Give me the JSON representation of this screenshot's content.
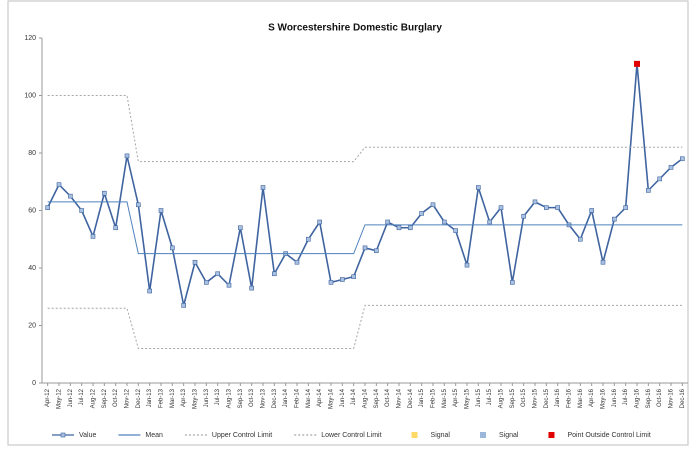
{
  "chart_data": {
    "type": "line",
    "title": "S Worcestershire Domestic Burglary",
    "categories": [
      "Apr-12",
      "May-12",
      "Jun-12",
      "Jul-12",
      "Aug-12",
      "Sep-12",
      "Oct-12",
      "Nov-12",
      "Dec-12",
      "Jan-13",
      "Feb-13",
      "Mar-13",
      "Apr-13",
      "May-13",
      "Jun-13",
      "Jul-13",
      "Aug-13",
      "Sep-13",
      "Oct-13",
      "Nov-13",
      "Dec-13",
      "Jan-14",
      "Feb-14",
      "Mar-14",
      "Apr-14",
      "May-14",
      "Jun-14",
      "Jul-14",
      "Aug-14",
      "Sep-14",
      "Oct-14",
      "Nov-14",
      "Dec-14",
      "Jan-15",
      "Feb-15",
      "Mar-15",
      "Apr-15",
      "May-15",
      "Jun-15",
      "Jul-15",
      "Aug-15",
      "Sep-15",
      "Oct-15",
      "Nov-15",
      "Dec-15",
      "Jan-16",
      "Feb-16",
      "Mar-16",
      "Apr-16",
      "May-16",
      "Jun-16",
      "Jul-16",
      "Aug-16",
      "Sep-16",
      "Oct-16",
      "Nov-16",
      "Dec-16"
    ],
    "series": [
      {
        "name": "Value",
        "color": "#3f64a0",
        "style": "line-marker",
        "values": [
          61,
          69,
          65,
          60,
          51,
          66,
          54,
          79,
          62,
          32,
          60,
          47,
          27,
          42,
          35,
          38,
          34,
          54,
          33,
          68,
          38,
          45,
          42,
          50,
          56,
          35,
          36,
          37,
          47,
          46,
          56,
          54,
          54,
          59,
          62,
          56,
          53,
          41,
          68,
          56,
          61,
          35,
          58,
          63,
          61,
          61,
          55,
          50,
          60,
          42,
          57,
          61,
          111,
          67,
          71,
          75,
          78
        ]
      },
      {
        "name": "Mean",
        "color": "#4f81bd",
        "style": "line",
        "values": [
          63,
          63,
          63,
          63,
          63,
          63,
          63,
          63,
          45,
          45,
          45,
          45,
          45,
          45,
          45,
          45,
          45,
          45,
          45,
          45,
          45,
          45,
          45,
          45,
          45,
          45,
          45,
          45,
          55,
          55,
          55,
          55,
          55,
          55,
          55,
          55,
          55,
          55,
          55,
          55,
          55,
          55,
          55,
          55,
          55,
          55,
          55,
          55,
          55,
          55,
          55,
          55,
          55,
          55,
          55,
          55,
          55
        ]
      },
      {
        "name": "Upper Control Limit",
        "color": "#a6a6a6",
        "style": "dotted",
        "values": [
          100,
          100,
          100,
          100,
          100,
          100,
          100,
          100,
          77,
          77,
          77,
          77,
          77,
          77,
          77,
          77,
          77,
          77,
          77,
          77,
          77,
          77,
          77,
          77,
          77,
          77,
          77,
          77,
          82,
          82,
          82,
          82,
          82,
          82,
          82,
          82,
          82,
          82,
          82,
          82,
          82,
          82,
          82,
          82,
          82,
          82,
          82,
          82,
          82,
          82,
          82,
          82,
          82,
          82,
          82,
          82,
          82
        ]
      },
      {
        "name": "Lower Control Limit",
        "color": "#a6a6a6",
        "style": "dotted",
        "values": [
          26,
          26,
          26,
          26,
          26,
          26,
          26,
          26,
          12,
          12,
          12,
          12,
          12,
          12,
          12,
          12,
          12,
          12,
          12,
          12,
          12,
          12,
          12,
          12,
          12,
          12,
          12,
          12,
          27,
          27,
          27,
          27,
          27,
          27,
          27,
          27,
          27,
          27,
          27,
          27,
          27,
          27,
          27,
          27,
          27,
          27,
          27,
          27,
          27,
          27,
          27,
          27,
          27,
          27,
          27,
          27,
          27
        ]
      },
      {
        "name": "Signal",
        "color": "#ffd966",
        "style": "marker",
        "values": [
          null,
          null,
          null,
          null,
          null,
          null,
          null,
          null,
          null,
          null,
          null,
          null,
          null,
          null,
          null,
          null,
          null,
          null,
          null,
          null,
          null,
          null,
          null,
          null,
          null,
          null,
          null,
          null,
          null,
          null,
          null,
          null,
          null,
          null,
          null,
          null,
          null,
          null,
          null,
          null,
          null,
          null,
          null,
          null,
          null,
          null,
          null,
          null,
          null,
          null,
          null,
          null,
          null,
          null,
          null,
          null,
          null
        ]
      },
      {
        "name": "Signal",
        "color": "#9bb7d9",
        "style": "marker",
        "values": [
          null,
          null,
          null,
          null,
          null,
          null,
          null,
          null,
          null,
          null,
          null,
          null,
          null,
          null,
          null,
          null,
          null,
          null,
          null,
          null,
          null,
          null,
          null,
          null,
          null,
          null,
          null,
          null,
          null,
          null,
          null,
          null,
          null,
          null,
          null,
          null,
          null,
          null,
          null,
          null,
          null,
          null,
          null,
          null,
          null,
          null,
          null,
          null,
          null,
          null,
          null,
          null,
          null,
          null,
          null,
          null,
          null
        ]
      },
      {
        "name": "Point Outside Control Limit",
        "color": "#e00000",
        "style": "marker",
        "values": [
          null,
          null,
          null,
          null,
          null,
          null,
          null,
          null,
          null,
          null,
          null,
          null,
          null,
          null,
          null,
          null,
          null,
          null,
          null,
          null,
          null,
          null,
          null,
          null,
          null,
          null,
          null,
          null,
          null,
          null,
          null,
          null,
          null,
          null,
          null,
          null,
          null,
          null,
          null,
          null,
          null,
          null,
          null,
          null,
          null,
          null,
          null,
          null,
          null,
          null,
          null,
          null,
          111,
          null,
          null,
          null,
          null
        ]
      }
    ],
    "ylim": [
      0,
      120
    ],
    "yticks": [
      0,
      20,
      40,
      60,
      80,
      100,
      120
    ],
    "grid": false,
    "legend": "bottom"
  }
}
